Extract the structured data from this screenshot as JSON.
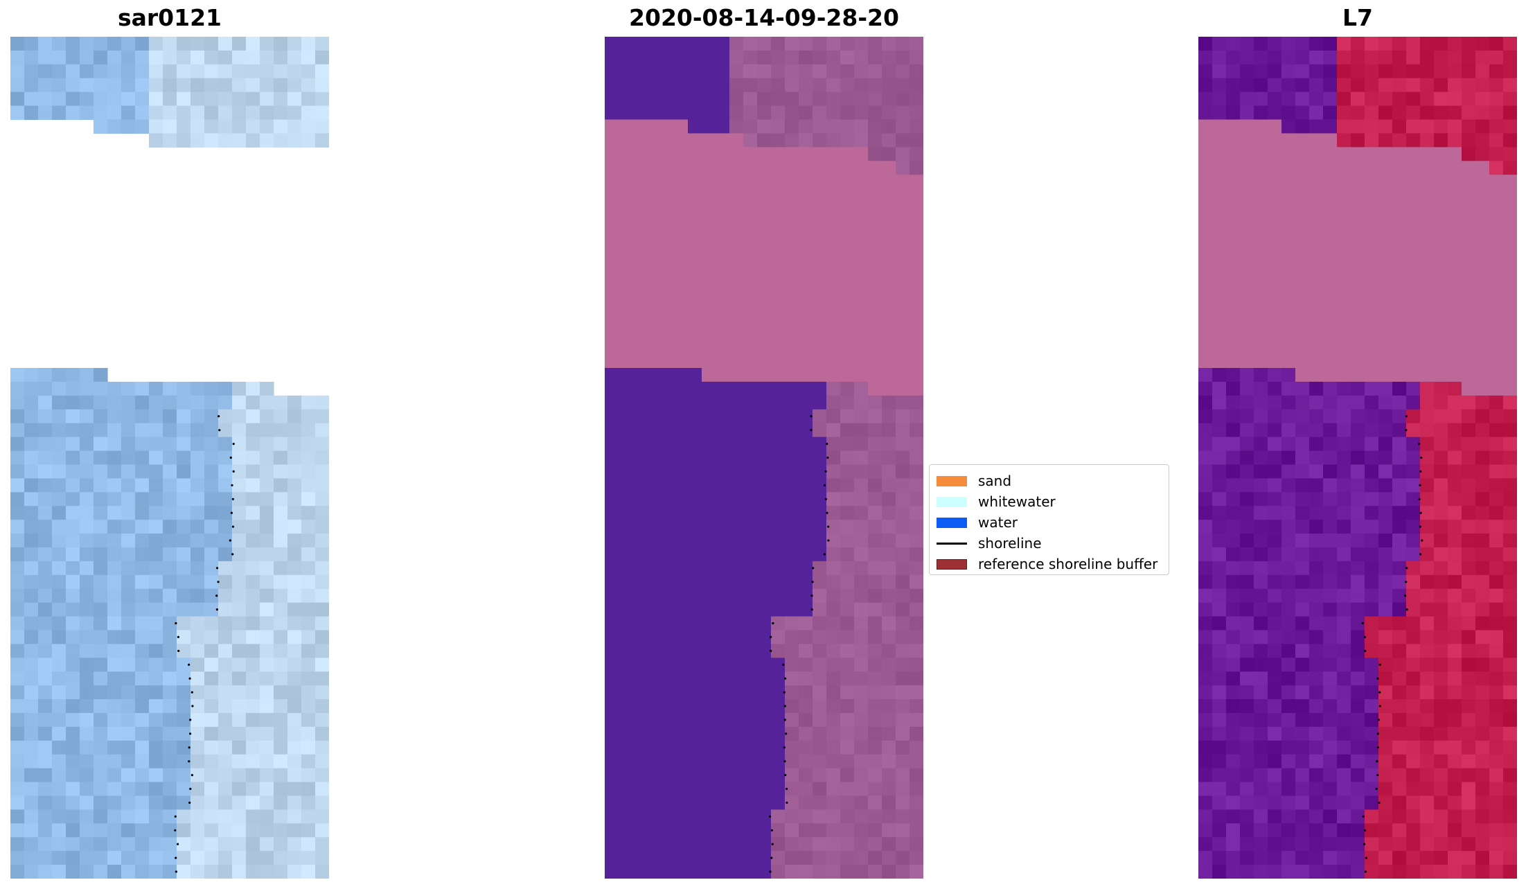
{
  "panels": [
    {
      "title": "sar0121"
    },
    {
      "title": "2020-08-14-09-28-20"
    },
    {
      "title": "L7"
    }
  ],
  "legend": {
    "items": [
      {
        "label": "sand",
        "color": "#f58c3c",
        "kind": "patch"
      },
      {
        "label": "whitewater",
        "color": "#ccffff",
        "kind": "patch"
      },
      {
        "label": "water",
        "color": "#0a5cf5",
        "kind": "patch"
      },
      {
        "label": "shoreline",
        "color": "#000000",
        "kind": "line"
      },
      {
        "label": "reference shoreline buffer",
        "color": "#9c3033",
        "kind": "patch-outlined"
      }
    ]
  },
  "colors": {
    "mask": "#bc6898",
    "class_water_purple": "#55229a",
    "sar_water": "#8fb8e4",
    "sar_land": "#bed6ec",
    "l7_water": "#6a1a98",
    "l7_land": "#c21e4e"
  }
}
